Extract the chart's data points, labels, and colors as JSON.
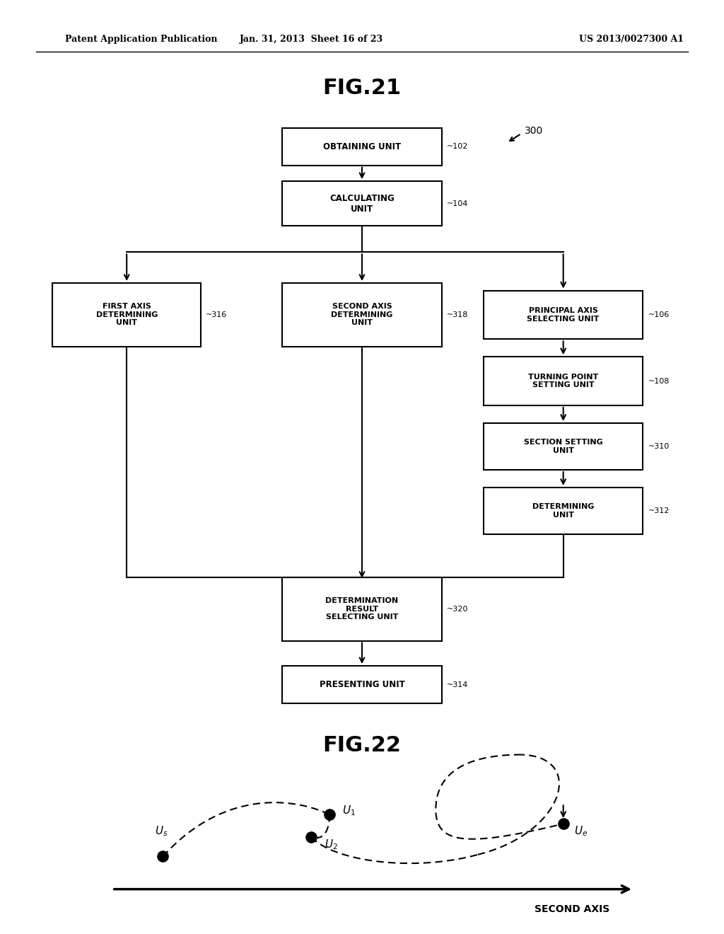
{
  "bg_color": "#ffffff",
  "header_left": "Patent Application Publication",
  "header_mid": "Jan. 31, 2013  Sheet 16 of 23",
  "header_right": "US 2013/0027300 A1",
  "fig21_title": "FIG.21",
  "fig22_title": "FIG.22",
  "label_300": "300",
  "second_axis_label": "SECOND AXIS"
}
